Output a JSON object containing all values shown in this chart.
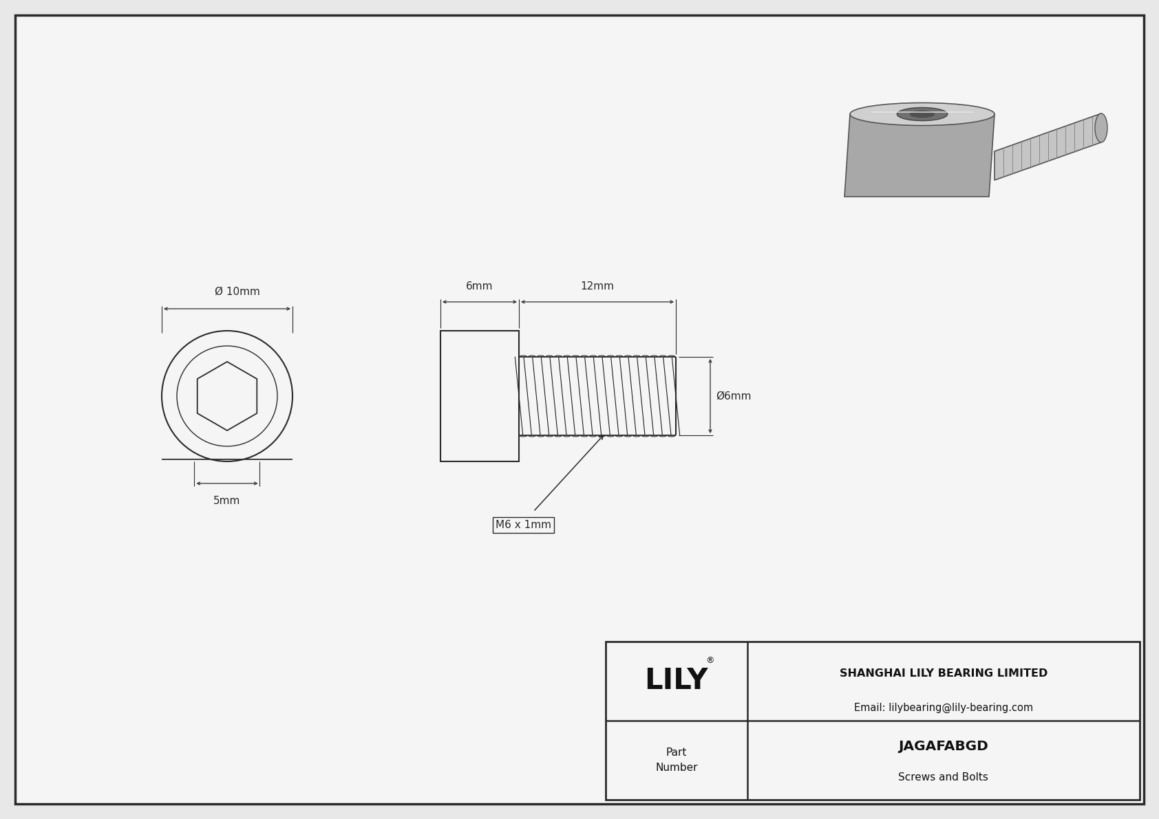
{
  "bg_color": "#e8e8e8",
  "drawing_bg": "#f5f5f5",
  "line_color": "#2a2a2a",
  "dim_color": "#2a2a2a",
  "title": "JAGAFABGD",
  "subtitle": "Screws and Bolts",
  "company": "SHANGHAI LILY BEARING LIMITED",
  "email": "Email: lilybearing@lily-bearing.com",
  "part_label": "Part\nNumber",
  "socket_label": "5mm",
  "diam_head_label": "Ø 10mm",
  "diam_thread_label": "Ø6mm",
  "head_len_label": "6mm",
  "thread_len_label": "12mm",
  "thread_label": "M6 x 1mm"
}
